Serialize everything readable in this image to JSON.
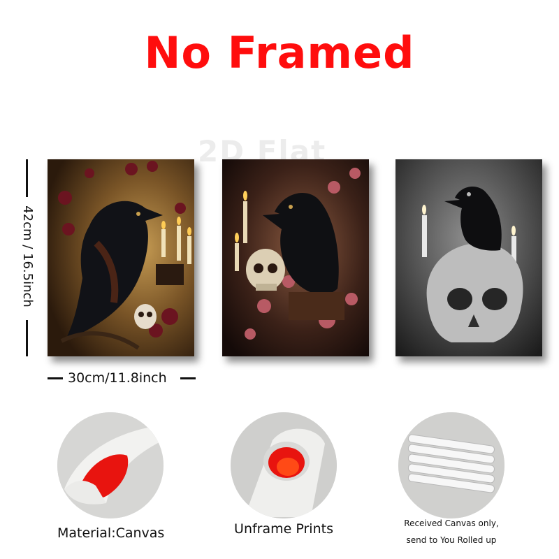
{
  "title": "No Framed",
  "watermark": "2D Flat",
  "dimensions": {
    "height_label": "42cm / 16.5inch",
    "width_label": "30cm/11.8inch"
  },
  "paintings": [
    {
      "icon": "raven-candles-roses-painting"
    },
    {
      "icon": "raven-skull-roses-painting"
    },
    {
      "icon": "raven-on-skull-painting"
    }
  ],
  "features": [
    {
      "icon": "canvas-roll-photo",
      "label": "Material:Canvas"
    },
    {
      "icon": "rolled-canvas-photo",
      "label": "Unframe  Prints"
    },
    {
      "icon": "rolled-canvases-package-photo",
      "line1": "Received Canvas only,",
      "line2": "send to You Rolled up"
    }
  ],
  "colors": {
    "title": "#ff0d0d",
    "canvas_inner": "#e8140f"
  }
}
